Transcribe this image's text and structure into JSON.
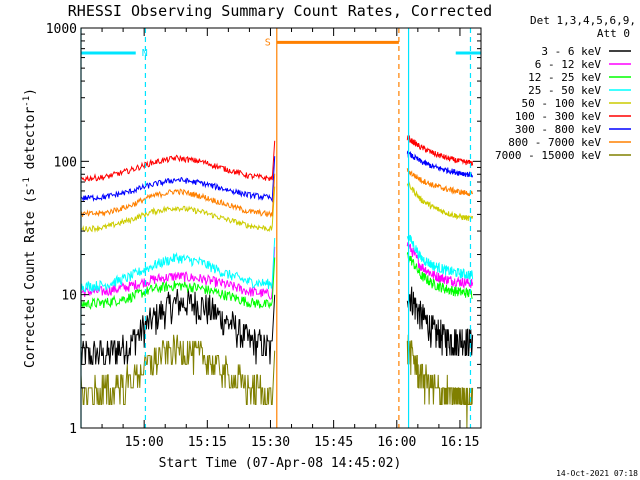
{
  "chart_data": {
    "type": "line",
    "title": "RHESSI Observing Summary Count Rates, Corrected",
    "xlabel": "Start Time (07-Apr-08 14:45:02)",
    "ylabel_main": "Corrected Count Rate (s",
    "ylabel_sup1": "-1",
    "ylabel_mid": " detector",
    "ylabel_sup2": "-1",
    "ylabel_end": ")",
    "y_scale": "log",
    "ylim": [
      1,
      1000
    ],
    "y_ticks": [
      {
        "value": 1,
        "label": "1"
      },
      {
        "value": 10,
        "label": "10"
      },
      {
        "value": 100,
        "label": "100"
      },
      {
        "value": 1000,
        "label": "1000"
      }
    ],
    "x_range_min": [
      0,
      95
    ],
    "x_ticks": [
      {
        "value": 15,
        "label": "15:00"
      },
      {
        "value": 30,
        "label": "15:15"
      },
      {
        "value": 45,
        "label": "15:30"
      },
      {
        "value": 60,
        "label": "15:45"
      },
      {
        "value": 75,
        "label": "16:00"
      },
      {
        "value": 90,
        "label": "16:15"
      }
    ],
    "x_data_range_label": "",
    "legend": {
      "header1": "Det 1,3,4,5,6,9,",
      "header2": "Att 0",
      "placement": "right"
    },
    "gap_minutes": [
      45.4,
      77.5
    ],
    "series": [
      {
        "name": "3 - 6 keV",
        "color": "#000000",
        "pre": [
          3.5,
          3.6,
          4.2,
          6.5,
          8.8,
          8.5,
          6.5,
          4.6,
          3.8
        ],
        "post": [
          10.5,
          7.0,
          5.3,
          4.8,
          4.6,
          4.5
        ]
      },
      {
        "name": "6 - 12 keV",
        "color": "#ff00ff",
        "pre": [
          10.5,
          10.6,
          11.5,
          13.0,
          13.8,
          13.2,
          12.0,
          10.6,
          10.0
        ],
        "post": [
          24.0,
          16.5,
          14.0,
          13.0,
          12.5,
          12.2
        ]
      },
      {
        "name": "12 - 25 keV",
        "color": "#00ff00",
        "pre": [
          8.5,
          8.7,
          9.5,
          11.0,
          11.8,
          11.2,
          10.0,
          8.8,
          8.3
        ],
        "post": [
          20.0,
          14.0,
          12.0,
          11.0,
          10.5,
          10.2
        ]
      },
      {
        "name": "25 - 50 keV",
        "color": "#00ffff",
        "pre": [
          11.5,
          11.8,
          13.5,
          16.5,
          19.0,
          17.5,
          14.5,
          12.5,
          12.0
        ],
        "post": [
          28.0,
          19.0,
          16.5,
          15.2,
          14.5,
          14.0
        ]
      },
      {
        "name": "50 - 100 keV",
        "color": "#cccc00",
        "pre": [
          31.0,
          32.0,
          36.0,
          42.0,
          45.0,
          42.0,
          37.0,
          33.0,
          31.0
        ],
        "post": [
          68.0,
          52.0,
          45.0,
          41.0,
          38.5,
          37.0
        ]
      },
      {
        "name": "100 - 300 keV",
        "color": "#ff0000",
        "pre": [
          74.0,
          76.0,
          85.0,
          98.0,
          106.0,
          100.0,
          88.0,
          78.0,
          74.0
        ],
        "post": [
          150.0,
          128.0,
          115.0,
          106.0,
          100.0,
          97.0
        ]
      },
      {
        "name": "300 - 800 keV",
        "color": "#0000ff",
        "pre": [
          53.0,
          54.0,
          59.0,
          67.0,
          73.0,
          69.0,
          62.0,
          56.0,
          53.0
        ],
        "post": [
          115.0,
          100.0,
          91.0,
          86.0,
          82.0,
          79.0
        ]
      },
      {
        "name": "800 - 7000 keV",
        "color": "#ff8000",
        "pre": [
          40.0,
          41.0,
          46.0,
          55.0,
          60.0,
          55.0,
          48.0,
          42.0,
          40.0
        ],
        "post": [
          85.0,
          73.0,
          66.0,
          62.0,
          59.0,
          57.0
        ]
      },
      {
        "name": "7000 - 15000 keV",
        "color": "#808000",
        "pre": [
          1.8,
          1.9,
          2.2,
          3.2,
          4.0,
          3.5,
          2.6,
          2.0,
          1.8
        ],
        "post": [
          4.0,
          2.5,
          2.0,
          1.8,
          1.7,
          1.7
        ]
      }
    ],
    "flags": [
      {
        "label": "N",
        "color": "#00e5ff",
        "bars": [
          [
            0,
            13
          ],
          [
            89,
            95
          ]
        ],
        "level": 650
      },
      {
        "label": "S",
        "color": "#ff8000",
        "bars": [
          [
            46.5,
            75.5
          ]
        ],
        "level": 780
      }
    ],
    "markers": [
      {
        "minute": 0,
        "color": "#00e5ff",
        "style": "solid"
      },
      {
        "minute": 15.3,
        "color": "#00e5ff",
        "style": "dashed"
      },
      {
        "minute": 77.8,
        "color": "#00e5ff",
        "style": "solid"
      },
      {
        "minute": 92.5,
        "color": "#00e5ff",
        "style": "dashed"
      },
      {
        "minute": 46.5,
        "color": "#ff8000",
        "style": "solid"
      },
      {
        "minute": 75.5,
        "color": "#ff8000",
        "style": "dashed"
      }
    ],
    "grid": false
  },
  "footer": {
    "timestamp": "14-Oct-2021 07:18"
  }
}
